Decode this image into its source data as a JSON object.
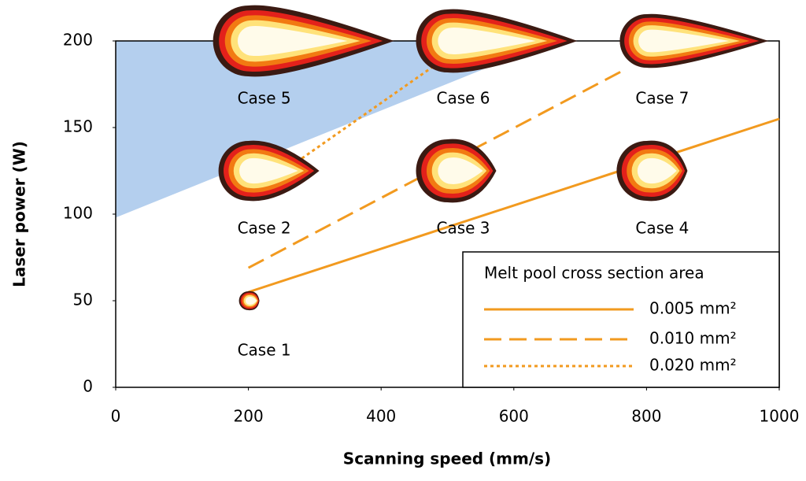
{
  "chart_data": {
    "type": "scatter",
    "xlabel": "Scanning speed (mm/s)",
    "ylabel": "Laser power (W)",
    "xlim": [
      0,
      1000
    ],
    "ylim": [
      0,
      200
    ],
    "xticks": [
      0,
      200,
      400,
      600,
      800,
      1000
    ],
    "yticks": [
      0,
      50,
      100,
      150,
      200
    ],
    "shaded_region": {
      "color": "#b4cfee",
      "x": [
        0,
        660,
        0
      ],
      "y": [
        98,
        200,
        200
      ]
    },
    "points": [
      {
        "label": "Case 1",
        "x": 200,
        "y": 50
      },
      {
        "label": "Case 2",
        "x": 200,
        "y": 125
      },
      {
        "label": "Case 3",
        "x": 500,
        "y": 125
      },
      {
        "label": "Case 4",
        "x": 800,
        "y": 125
      },
      {
        "label": "Case 5",
        "x": 200,
        "y": 200
      },
      {
        "label": "Case 6",
        "x": 500,
        "y": 200
      },
      {
        "label": "Case 7",
        "x": 800,
        "y": 200
      }
    ],
    "legend_title": "Melt pool cross section area",
    "series": [
      {
        "name": "0.005 mm²",
        "color": "#f29a1f",
        "dash": "solid",
        "x": [
          200,
          1000
        ],
        "y": [
          55,
          155
        ]
      },
      {
        "name": "0.010 mm²",
        "color": "#f29a1f",
        "dash": "dashed",
        "x": [
          200,
          765
        ],
        "y": [
          69,
          183
        ]
      },
      {
        "name": "0.020 mm²",
        "color": "#f29a1f",
        "dash": "dotted",
        "x": [
          265,
          485
        ],
        "y": [
          128,
          187
        ]
      }
    ]
  }
}
